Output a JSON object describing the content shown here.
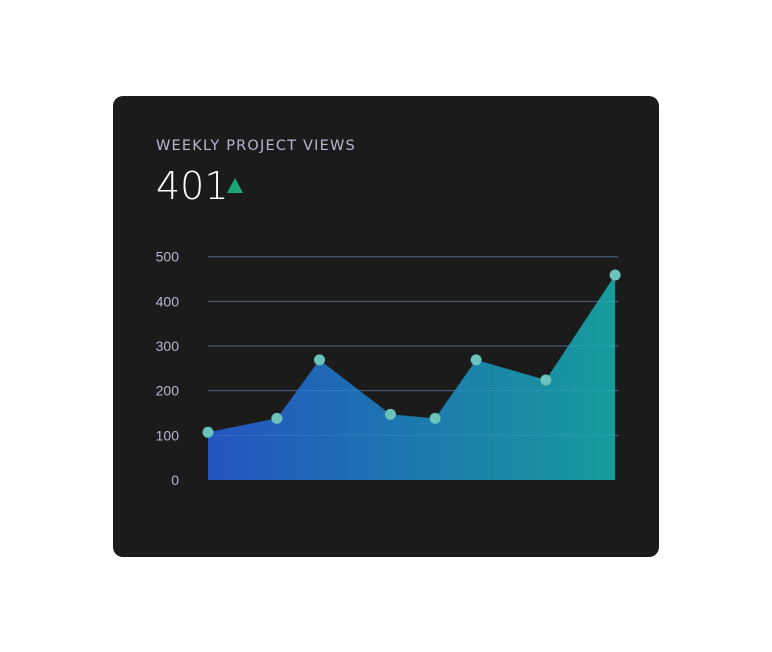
{
  "card": {
    "title": "WEEKLY PROJECT VIEWS",
    "metric_value": "401",
    "trend_icon": "triangle-up-icon",
    "trend_color": "#1aa579"
  },
  "chart_data": {
    "type": "area",
    "title": "",
    "xlabel": "",
    "ylabel": "",
    "ylim": [
      0,
      500
    ],
    "yticks": [
      "0",
      "100",
      "200",
      "300",
      "400",
      "500"
    ],
    "grid": true,
    "values": [
      107,
      138,
      269,
      147,
      138,
      269,
      224,
      459
    ],
    "colors": {
      "gradient_start": "#2457c9",
      "gradient_end": "#16a3a3",
      "point": "#6cc3bb",
      "grid": "#4a4d72",
      "tick_label": "#b4b9d2"
    }
  }
}
